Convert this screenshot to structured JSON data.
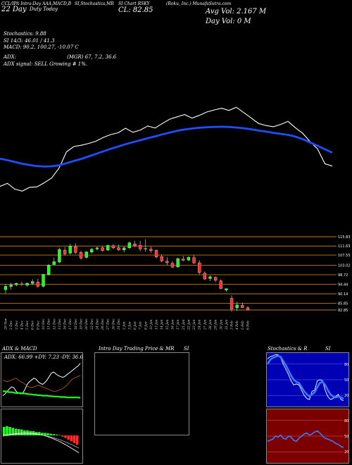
{
  "header": {
    "left": "CCL/IPA Intra-Day AAA,MACD,B",
    "s1": "SI,Stochastics,MR",
    "s2": "SI Chart RSKY",
    "s3": "(Roku, Inc.) MunafaSutra.com",
    "s4": "Duty Today",
    "close_label": "CL: 82.85",
    "avg_vol": "Avg Vol: 2.167 M",
    "day_vol": "Day Vol: 0  M",
    "date_label": "22   Day"
  },
  "indicators": {
    "stoch": "Stochastics: 9.88",
    "si": "SI 14/3: 46.01 / 41.3",
    "macd": "MACD: 90.2,  100.27, -10.07 C",
    "adx": "ADX:",
    "adx_vals": "(MGR) 67, 7.2,  36.6",
    "signal": "ADX  signal: SELL Growing # 1%."
  },
  "colors": {
    "up": "#ff2b2b",
    "down": "#ff2b2b",
    "ma": "#1e4fff",
    "price": "#ffffff",
    "grid": "#c47a12"
  },
  "chart_data": [
    {
      "type": "line",
      "x": [
        "29 Nov",
        "2 Dec",
        "3 Dec",
        "4 Dec",
        "5 Dec",
        "6 Dec",
        "9 Dec",
        "10 Dec",
        "11 Dec",
        "12 Dec",
        "13 Dec",
        "16 Dec",
        "17 Dec",
        "18 Dec",
        "19 Dec",
        "20 Dec",
        "23 Dec",
        "24 Dec",
        "26 Dec",
        "27 Dec",
        "30 Dec",
        "31 Dec",
        "2 Jan",
        "3 Jan",
        "6 Jan",
        "7 Jan",
        "8 Jan",
        "10 Jan",
        "13 Jan",
        "14 Jan",
        "15 Jan",
        "16 Jan",
        "17 Jan",
        "21 Jan",
        "22 Jan",
        "23 Jan",
        "24 Jan",
        "27 Jan",
        "28 Jan",
        "29 Jan",
        "30 Jan",
        "31 Jan",
        "3 Feb",
        "4 Feb",
        "5 Feb",
        "6 Feb"
      ],
      "series": [
        {
          "values": [
            79.2,
            80.4,
            78.1,
            77.3,
            78.8,
            79.0,
            80.6,
            82.5,
            86.4,
            92.8,
            94.9,
            95.4,
            96.1,
            97.0,
            98.5,
            99.6,
            100.3,
            102.1,
            100.5,
            101.4,
            103.0,
            102.2,
            104.0,
            105.7,
            106.6,
            107.5,
            106.1,
            107.2,
            108.5,
            109.3,
            110.0,
            109.1,
            110.4,
            108.3,
            106.2,
            104.0,
            103.2,
            102.7,
            103.6,
            104.8,
            102.3,
            100.1,
            96.8,
            94.0,
            88.1,
            87.2
          ]
        },
        {
          "values": [
            90.1,
            89.5,
            88.8,
            88.1,
            87.6,
            87.2,
            87.0,
            87.1,
            87.5,
            88.3,
            89.2,
            90.0,
            91.0,
            92.0,
            93.0,
            94.0,
            94.9,
            95.8,
            96.6,
            97.4,
            98.2,
            98.9,
            99.7,
            100.4,
            101.1,
            101.6,
            102.0,
            102.3,
            102.5,
            102.6,
            102.7,
            102.6,
            102.4,
            102.1,
            101.7,
            101.2,
            100.8,
            100.3,
            99.9,
            99.5,
            98.8,
            97.8,
            96.5,
            95.2,
            93.8,
            92.5
          ]
        }
      ]
    },
    {
      "type": "candlestick",
      "ytick_labels": [
        "115.83",
        "111.63",
        "107.55",
        "103.02",
        "98.72",
        "94.44",
        "90.14",
        "85.85",
        "82.85"
      ],
      "x": [
        "29 Nov",
        "2 Dec",
        "3 Dec",
        "4 Dec",
        "5 Dec",
        "6 Dec",
        "9 Dec",
        "10 Dec",
        "11 Dec",
        "12 Dec",
        "13 Dec",
        "16 Dec",
        "17 Dec",
        "18 Dec",
        "19 Dec",
        "20 Dec",
        "23 Dec",
        "24 Dec",
        "26 Dec",
        "27 Dec",
        "30 Dec",
        "31 Dec",
        "2 Jan",
        "3 Jan",
        "6 Jan",
        "7 Jan",
        "8 Jan",
        "10 Jan",
        "13 Jan",
        "14 Jan",
        "15 Jan",
        "16 Jan",
        "17 Jan",
        "21 Jan",
        "22 Jan",
        "23 Jan",
        "24 Jan",
        "27 Jan",
        "28 Jan",
        "29 Jan",
        "30 Jan",
        "31 Jan",
        "3 Feb",
        "4 Feb",
        "5 Feb",
        "6 Feb"
      ],
      "values": [
        [
          92.0,
          94.6,
          90.4,
          93.5
        ],
        [
          93.4,
          95.0,
          92.1,
          94.1
        ],
        [
          94.2,
          95.2,
          93.5,
          94.8
        ],
        [
          94.6,
          95.6,
          93.9,
          94.2
        ],
        [
          94.0,
          95.2,
          93.4,
          94.9
        ],
        [
          94.8,
          96.7,
          94.1,
          95.6
        ],
        [
          95.4,
          96.9,
          92.8,
          93.5
        ],
        [
          93.5,
          99.1,
          93.0,
          98.9
        ],
        [
          98.8,
          103.6,
          98.4,
          103.1
        ],
        [
          103.3,
          106.4,
          103.0,
          104.6
        ],
        [
          104.4,
          110.9,
          104.0,
          110.1
        ],
        [
          109.8,
          111.2,
          107.4,
          108.1
        ],
        [
          108.4,
          112.6,
          107.9,
          111.6
        ],
        [
          111.3,
          112.9,
          108.1,
          108.7
        ],
        [
          108.8,
          109.6,
          105.5,
          106.2
        ],
        [
          106.5,
          109.4,
          106.1,
          109.0
        ],
        [
          108.9,
          110.8,
          108.2,
          110.2
        ],
        [
          110.3,
          111.4,
          109.6,
          110.8
        ],
        [
          110.9,
          111.5,
          109.2,
          109.6
        ],
        [
          109.8,
          112.3,
          109.5,
          111.9
        ],
        [
          111.8,
          112.5,
          110.2,
          110.8
        ],
        [
          110.9,
          112.3,
          109.5,
          109.9
        ],
        [
          109.9,
          111.4,
          108.7,
          110.8
        ],
        [
          110.8,
          113.6,
          110.3,
          113.1
        ],
        [
          112.6,
          114.0,
          111.1,
          111.8
        ],
        [
          111.9,
          114.0,
          109.3,
          110.3
        ],
        [
          110.5,
          114.7,
          109.1,
          110.2
        ],
        [
          110.2,
          111.4,
          108.7,
          109.5
        ],
        [
          109.7,
          110.2,
          106.2,
          106.7
        ],
        [
          106.9,
          107.9,
          104.4,
          104.9
        ],
        [
          104.8,
          106.6,
          103.1,
          104.1
        ],
        [
          103.9,
          104.8,
          101.8,
          102.1
        ],
        [
          102.2,
          106.3,
          102.0,
          106.0
        ],
        [
          105.8,
          107.2,
          104.8,
          105.2
        ],
        [
          105.3,
          106.9,
          104.9,
          106.6
        ],
        [
          106.4,
          107.6,
          103.6,
          104.0
        ],
        [
          104.1,
          105.3,
          98.9,
          99.7
        ],
        [
          99.4,
          100.2,
          96.3,
          96.8
        ],
        [
          97.0,
          98.4,
          95.9,
          97.8
        ],
        [
          97.6,
          98.0,
          95.4,
          96.2
        ],
        [
          96.0,
          96.7,
          92.2,
          92.5
        ],
        [
          91.8,
          92.6,
          91.1,
          92.4
        ],
        [
          88.1,
          89.5,
          82.1,
          83.3
        ],
        [
          83.8,
          86.6,
          82.4,
          85.1
        ],
        [
          85.0,
          86.2,
          83.9,
          83.9
        ],
        [
          83.9,
          84.6,
          82.6,
          82.9
        ]
      ]
    },
    {
      "type": "line",
      "title": "ADX  & MACD",
      "adx_label": "ADX: 66.99  +DY: 7.23  -DY: 36.6",
      "series": [
        {
          "values": [
            20,
            24,
            30,
            36,
            40,
            38,
            30,
            26,
            24,
            26,
            34,
            46,
            52,
            56,
            60,
            58,
            52,
            48,
            46,
            50,
            56,
            64,
            72,
            74,
            70,
            66,
            64,
            62,
            64,
            68,
            72,
            76,
            80,
            84,
            88,
            94
          ]
        },
        {
          "values": [
            56,
            54,
            52,
            54,
            56,
            58,
            60,
            56,
            52,
            50,
            46,
            42,
            40,
            38,
            40,
            42,
            44,
            42,
            40,
            38,
            36,
            34,
            32,
            30,
            30,
            32,
            34,
            36,
            40,
            44,
            50,
            56,
            60,
            62,
            64,
            66
          ]
        },
        {
          "values": [
            30,
            30,
            29,
            28,
            28,
            27,
            26,
            26,
            26,
            25,
            25,
            24,
            23,
            23,
            22,
            22,
            21,
            21,
            20,
            20,
            20,
            19,
            19,
            18,
            18,
            18,
            17,
            17,
            17,
            16,
            16,
            16,
            16,
            16,
            16,
            15
          ]
        }
      ]
    },
    {
      "type": "line",
      "title": "Stochastics & R",
      "ytick_labels": [
        "80",
        "50",
        "20"
      ],
      "series": [
        {
          "values": [
            90,
            94,
            96,
            98,
            98,
            92,
            80,
            70,
            60,
            48,
            40,
            42,
            40,
            30,
            20,
            14,
            12,
            28,
            30,
            48,
            50,
            48,
            30,
            18,
            12,
            14,
            18,
            22,
            12,
            10
          ]
        },
        {
          "values": [
            80,
            88,
            92,
            94,
            96,
            94,
            86,
            78,
            68,
            58,
            50,
            46,
            44,
            36,
            28,
            22,
            18,
            22,
            26,
            36,
            44,
            46,
            40,
            30,
            22,
            18,
            16,
            18,
            16,
            14
          ]
        }
      ]
    },
    {
      "type": "line",
      "title": "SI",
      "ytick_labels": [
        "80",
        "50",
        "20"
      ],
      "series": [
        {
          "values": [
            40,
            42,
            44,
            50,
            48,
            52,
            46,
            44,
            50,
            48,
            42,
            40,
            46,
            50,
            54,
            56,
            52,
            54,
            58,
            60,
            56,
            50,
            46,
            44,
            42,
            40,
            36,
            34,
            30,
            28
          ]
        }
      ]
    },
    {
      "type": "bar",
      "title": "MACD",
      "values": [
        2.0,
        2.2,
        2.0,
        1.8,
        1.6,
        1.5,
        1.4,
        1.2,
        1.2,
        1.0,
        1.0,
        0.8,
        0.8,
        0.6,
        0.6,
        0.5,
        0.4,
        0.3,
        0.2,
        0.1,
        -0.3,
        -0.6,
        -1.0,
        -1.4,
        -1.8,
        -2.2
      ]
    }
  ],
  "panels": {
    "intra": "Intra  Day Trading Price  & MR",
    "si_title": "SI",
    "stoch_title": "Stochastics & R",
    "si_right": "SI"
  }
}
